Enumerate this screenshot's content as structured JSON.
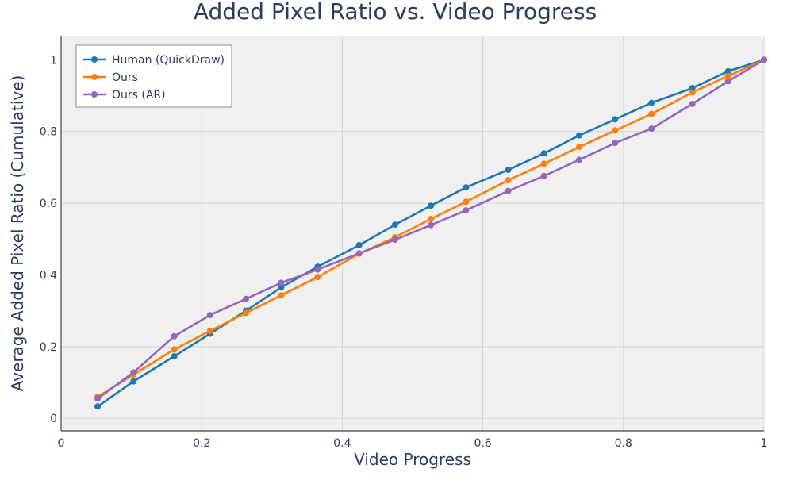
{
  "chart_data": {
    "type": "line",
    "title": "Added Pixel Ratio vs. Video Progress",
    "xlabel": "Video Progress",
    "ylabel": "Average Added Pixel Ratio (Cumulative)",
    "xlim": [
      0,
      1
    ],
    "ylim": [
      -0.035,
      1.065
    ],
    "xticks": [
      0,
      0.2,
      0.4,
      0.6,
      0.8,
      1
    ],
    "xtick_labels": [
      "0",
      "0.2",
      "0.4",
      "0.6",
      "0.8",
      "1"
    ],
    "yticks": [
      0,
      0.2,
      0.4,
      0.6,
      0.8,
      1
    ],
    "ytick_labels": [
      "0",
      "0.2",
      "0.4",
      "0.6",
      "0.8",
      "1"
    ],
    "grid": true,
    "legend_position": "top-left",
    "series": [
      {
        "name": "Human (QuickDraw)",
        "color": "#1f77b4",
        "x": [
          0.052,
          0.103,
          0.161,
          0.212,
          0.263,
          0.313,
          0.365,
          0.424,
          0.475,
          0.526,
          0.576,
          0.636,
          0.687,
          0.737,
          0.788,
          0.84,
          0.898,
          0.949,
          1.0
        ],
        "y": [
          0.033,
          0.103,
          0.173,
          0.236,
          0.3,
          0.365,
          0.423,
          0.483,
          0.54,
          0.593,
          0.644,
          0.693,
          0.739,
          0.789,
          0.834,
          0.88,
          0.921,
          0.968,
          1.0
        ]
      },
      {
        "name": "Ours",
        "color": "#ff7f0e",
        "x": [
          0.052,
          0.103,
          0.161,
          0.212,
          0.263,
          0.313,
          0.365,
          0.424,
          0.475,
          0.526,
          0.576,
          0.636,
          0.687,
          0.737,
          0.788,
          0.84,
          0.898,
          0.949,
          1.0
        ],
        "y": [
          0.06,
          0.122,
          0.192,
          0.244,
          0.294,
          0.343,
          0.394,
          0.459,
          0.505,
          0.556,
          0.604,
          0.664,
          0.71,
          0.757,
          0.803,
          0.849,
          0.909,
          0.955,
          1.0
        ]
      },
      {
        "name": "Ours (AR)",
        "color": "#9467bd",
        "x": [
          0.052,
          0.103,
          0.161,
          0.212,
          0.263,
          0.313,
          0.365,
          0.424,
          0.475,
          0.526,
          0.576,
          0.636,
          0.687,
          0.737,
          0.788,
          0.84,
          0.898,
          0.949,
          1.0
        ],
        "y": [
          0.055,
          0.128,
          0.229,
          0.288,
          0.333,
          0.378,
          0.415,
          0.46,
          0.498,
          0.539,
          0.58,
          0.634,
          0.676,
          0.721,
          0.768,
          0.808,
          0.877,
          0.94,
          1.0
        ]
      }
    ]
  },
  "colors": {
    "plot_background": "#f0f0f0",
    "grid": "#d5d5d5",
    "axis": "#444444",
    "text": "#2a3f5f"
  }
}
